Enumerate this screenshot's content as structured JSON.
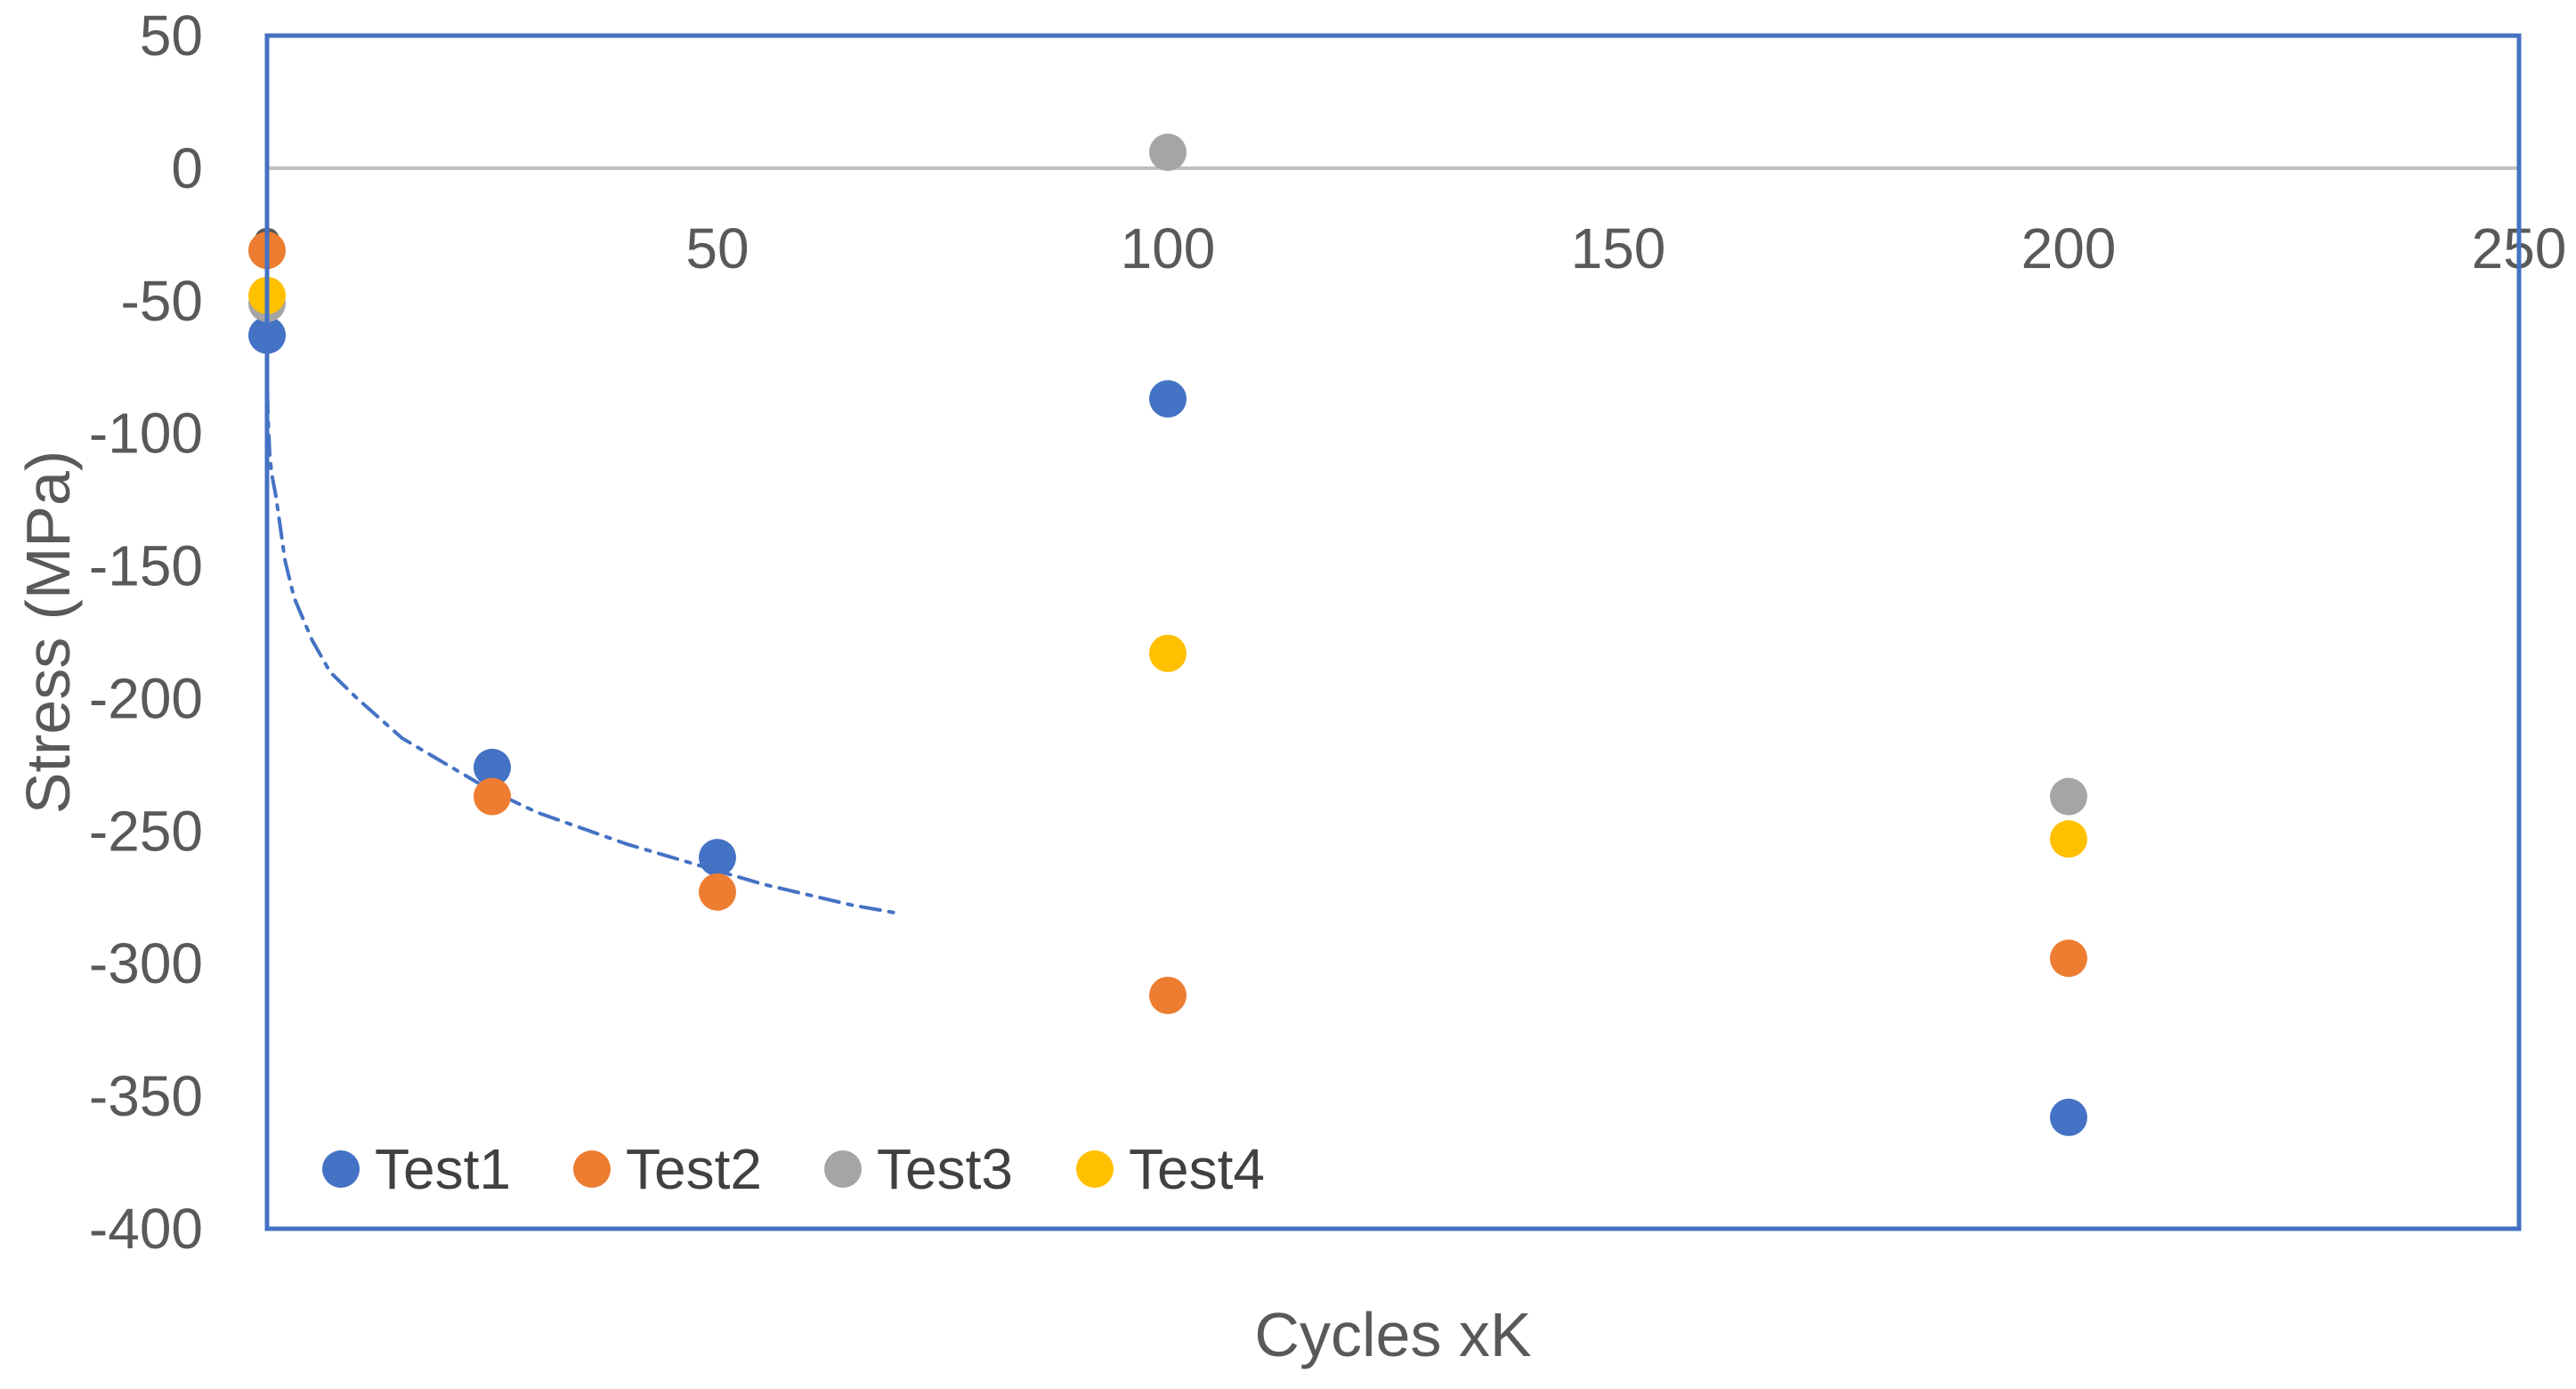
{
  "chart_data": {
    "type": "scatter",
    "title": "",
    "xlabel": "Cycles xK",
    "ylabel": "Stress (MPa)",
    "xlim": [
      0,
      250
    ],
    "ylim": [
      -400,
      50
    ],
    "x_ticks": [
      0,
      50,
      100,
      150,
      200,
      250
    ],
    "y_ticks": [
      50,
      0,
      -50,
      -100,
      -150,
      -200,
      -250,
      -300,
      -350,
      -400
    ],
    "x_tick_labels": [
      "0",
      "50",
      "100",
      "150",
      "200",
      "250"
    ],
    "y_tick_labels": [
      "50",
      "0",
      "-50",
      "-100",
      "-150",
      "-200",
      "-250",
      "-300",
      "-350",
      "-400"
    ],
    "grid": false,
    "legend_position": "bottom-left",
    "series": [
      {
        "name": "Test1",
        "color": "#4472C4",
        "x": [
          0,
          25,
          50,
          100,
          200
        ],
        "y": [
          -63,
          -226,
          -260,
          -87,
          -358
        ]
      },
      {
        "name": "Test2",
        "color": "#ED7D31",
        "x": [
          0,
          25,
          50,
          100,
          200
        ],
        "y": [
          -31,
          -237,
          -273,
          -312,
          -298
        ]
      },
      {
        "name": "Test3",
        "color": "#A5A5A5",
        "x": [
          0,
          100,
          200
        ],
        "y": [
          -51,
          6,
          -237
        ]
      },
      {
        "name": "Test4",
        "color": "#FFC000",
        "x": [
          0,
          100,
          200
        ],
        "y": [
          -48,
          -183,
          -253
        ]
      }
    ],
    "trendline": {
      "series": "Test1",
      "type": "logarithmic",
      "style": "dash-dot",
      "color": "#4472C4",
      "x": [
        0.05,
        0.1,
        0.3,
        0.5,
        1,
        2,
        3,
        5,
        7,
        10,
        15,
        20,
        25,
        30,
        35,
        40,
        45,
        50,
        55,
        60,
        65,
        70
      ],
      "y": [
        -85,
        -93,
        -108,
        -115,
        -124,
        -148,
        -162,
        -178,
        -190,
        -200,
        -215,
        -225,
        -235,
        -243,
        -249,
        -255,
        -260,
        -265,
        -270,
        -274,
        -278,
        -281
      ]
    }
  }
}
